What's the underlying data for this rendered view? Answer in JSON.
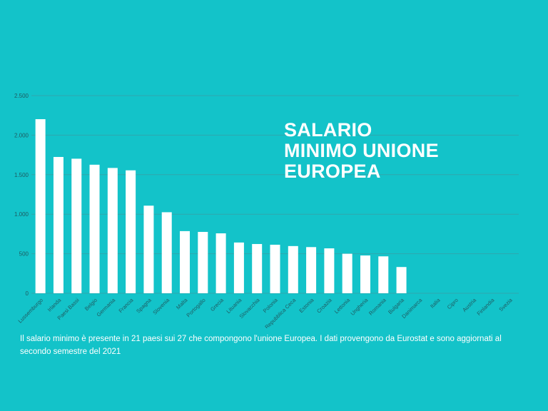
{
  "title": {
    "line1": "SALARIO",
    "line2": "MINIMO UNIONE",
    "line3": "EUROPEA"
  },
  "caption": "Il salario minimo è presente in 21 paesi sui 27 che compongono l'unione Europea. I dati provengono da Eurostat e sono aggiornati al secondo semestre del 2021",
  "colors": {
    "background": "#13c3c9",
    "bar": "#ffffff",
    "grid": "#2fa7ae",
    "axis_text": "#1f5a60"
  },
  "chart_data": {
    "type": "bar",
    "title": "SALARIO MINIMO UNIONE EUROPEA",
    "xlabel": "",
    "ylabel": "",
    "ylim": [
      0,
      2500
    ],
    "yticks": [
      0,
      500,
      1000,
      1500,
      2000,
      2500
    ],
    "ytick_labels": [
      "0",
      "500",
      "1.000",
      "1.500",
      "2.000",
      "2.500"
    ],
    "grid": true,
    "categories": [
      "Lussemburgo",
      "Irlanda",
      "Paesi Bassi",
      "Belgio",
      "Germania",
      "Francia",
      "Spagna",
      "Slovenia",
      "Malta",
      "Portogallo",
      "Grecia",
      "Lituania",
      "Slovacchia",
      "Polonia",
      "Repubblica Ceca",
      "Estonia",
      "Croazia",
      "Lettonia",
      "Ungheria",
      "Romania",
      "Bulgaria",
      "Danimarca",
      "Italia",
      "Cipro",
      "Austria",
      "Finlandia",
      "Svezia"
    ],
    "values": [
      2202,
      1724,
      1702,
      1626,
      1585,
      1555,
      1108,
      1025,
      786,
      776,
      758,
      642,
      623,
      614,
      597,
      584,
      568,
      500,
      478,
      467,
      332,
      0,
      0,
      0,
      0,
      0,
      0
    ]
  }
}
